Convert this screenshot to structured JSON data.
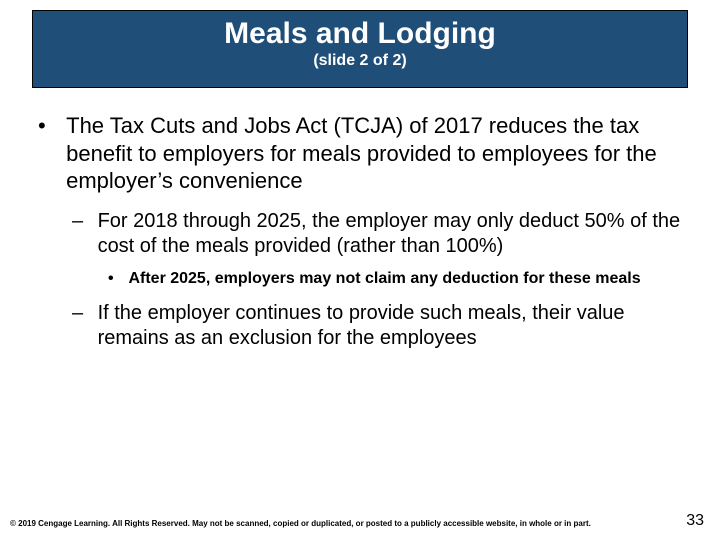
{
  "colors": {
    "title_bg": "#1f4e79",
    "title_text": "#ffffff",
    "body_text": "#000000",
    "slide_bg": "#ffffff"
  },
  "typography": {
    "title_fontsize": 30,
    "subtitle_fontsize": 16,
    "lvl1_fontsize": 22,
    "lvl2_fontsize": 20,
    "lvl3_fontsize": 16,
    "footer_fontsize": 8
  },
  "title": {
    "main": "Meals and Lodging",
    "sub": "(slide 2 of 2)"
  },
  "bullets": {
    "lvl1_1": "The Tax Cuts and Jobs Act (TCJA) of 2017 reduces the tax benefit to employers for meals provided to employees for the employer’s convenience",
    "lvl2_1": "For 2018 through 2025, the employer may only deduct 50% of the cost of the meals provided (rather than 100%)",
    "lvl3_1": "After 2025, employers may not claim any deduction for these meals",
    "lvl2_2": "If the employer continues to provide such meals, their value remains as an exclusion for the employees"
  },
  "footer": "© 2019 Cengage Learning. All Rights Reserved. May not be scanned, copied or duplicated, or posted to a publicly accessible website, in whole or in part.",
  "page_number": "33",
  "glyphs": {
    "lvl1": "•",
    "lvl2": "–",
    "lvl3": "•"
  }
}
